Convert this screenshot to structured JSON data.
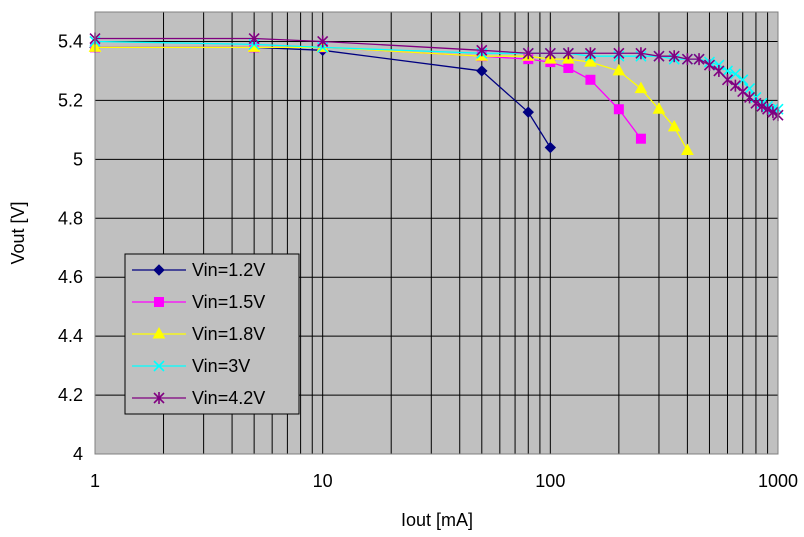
{
  "chart_data": {
    "type": "line",
    "title": "",
    "xlabel": "Iout [mA]",
    "ylabel": "Vout [V]",
    "x_scale": "log",
    "xlim": [
      1,
      1000
    ],
    "ylim": [
      4,
      5.5
    ],
    "x_ticks": [
      1,
      10,
      100,
      1000
    ],
    "x_tick_labels": [
      "1",
      "10",
      "100",
      "1000"
    ],
    "y_ticks": [
      4,
      4.2,
      4.4,
      4.6,
      4.8,
      5,
      5.2,
      5.4
    ],
    "y_tick_labels": [
      "4",
      "4.2",
      "4.4",
      "4.6",
      "4.8",
      "5",
      "5.2",
      "5.4"
    ],
    "grid": true,
    "plot_background": "#c0c0c0",
    "legend_position": "lower-left",
    "series": [
      {
        "name": "Vin=1.2V",
        "color": "#000080",
        "marker": "diamond",
        "x": [
          1,
          5,
          10,
          50,
          80,
          100
        ],
        "y": [
          5.38,
          5.38,
          5.37,
          5.3,
          5.16,
          5.04
        ]
      },
      {
        "name": "Vin=1.5V",
        "color": "#ff00ff",
        "marker": "square",
        "x": [
          1,
          5,
          10,
          50,
          80,
          100,
          120,
          150,
          200,
          250
        ],
        "y": [
          5.38,
          5.38,
          5.38,
          5.35,
          5.34,
          5.33,
          5.31,
          5.27,
          5.17,
          5.07
        ]
      },
      {
        "name": "Vin=1.8V",
        "color": "#ffff00",
        "marker": "triangle",
        "x": [
          1,
          5,
          10,
          50,
          80,
          100,
          120,
          150,
          200,
          250,
          300,
          350,
          400
        ],
        "y": [
          5.38,
          5.38,
          5.38,
          5.35,
          5.35,
          5.34,
          5.34,
          5.33,
          5.3,
          5.24,
          5.17,
          5.11,
          5.03
        ]
      },
      {
        "name": "Vin=3V",
        "color": "#00ffff",
        "marker": "x",
        "x": [
          1,
          5,
          10,
          50,
          80,
          100,
          120,
          150,
          200,
          250,
          300,
          350,
          400,
          450,
          500,
          550,
          600,
          650,
          700,
          750,
          800,
          850,
          900,
          950,
          1000
        ],
        "y": [
          5.4,
          5.39,
          5.38,
          5.36,
          5.36,
          5.36,
          5.36,
          5.35,
          5.35,
          5.35,
          5.35,
          5.34,
          5.34,
          5.34,
          5.33,
          5.32,
          5.3,
          5.29,
          5.27,
          5.24,
          5.21,
          5.19,
          5.18,
          5.17,
          5.17
        ]
      },
      {
        "name": "Vin=4.2V",
        "color": "#800080",
        "marker": "star",
        "x": [
          1,
          5,
          10,
          50,
          80,
          100,
          120,
          150,
          200,
          250,
          300,
          350,
          400,
          450,
          500,
          550,
          600,
          650,
          700,
          750,
          800,
          850,
          900,
          950,
          1000
        ],
        "y": [
          5.41,
          5.41,
          5.4,
          5.37,
          5.36,
          5.36,
          5.36,
          5.36,
          5.36,
          5.36,
          5.35,
          5.35,
          5.34,
          5.34,
          5.32,
          5.3,
          5.27,
          5.25,
          5.23,
          5.21,
          5.19,
          5.18,
          5.17,
          5.16,
          5.15
        ]
      }
    ]
  }
}
